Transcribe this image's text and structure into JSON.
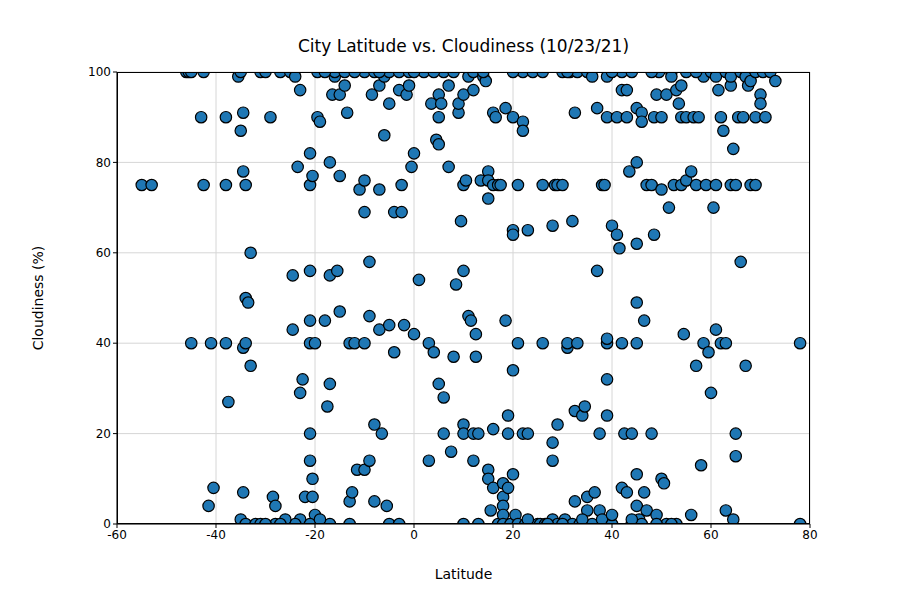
{
  "chart_data": {
    "type": "scatter",
    "title": "City Latitude vs. Cloudiness (10/23/21)",
    "x_label": "Latitude",
    "y_label": "Cloudiness (%)",
    "color": "#1f77b4",
    "marker": "o",
    "grid": true,
    "xlim": [
      -60,
      80
    ],
    "xticks": [
      -60,
      -40,
      -20,
      0,
      20,
      40,
      60,
      80
    ],
    "ylim": [
      0,
      100
    ],
    "yticks": [
      0,
      20,
      40,
      60,
      80,
      100
    ],
    "x": [
      -55,
      -53,
      -46,
      -45.5,
      -45,
      -45,
      -43,
      -42.5,
      -42.5,
      -41.5,
      -41,
      -40.5,
      -38,
      -38,
      -38,
      -37.5,
      -35.5,
      -35,
      -35,
      -34.5,
      -34.5,
      -34.5,
      -34,
      -34,
      -34,
      -33.5,
      -33,
      -33,
      -34.5,
      -35,
      -34,
      -32,
      -31,
      -31,
      -30,
      -29,
      -28.5,
      -28,
      -28,
      -27,
      -26,
      -25,
      -24.5,
      -24.5,
      -24,
      -23.5,
      -23,
      -23,
      -22.5,
      -22,
      -23,
      -24,
      -21,
      -21,
      -21,
      -21,
      -21,
      -21,
      -21,
      -20.5,
      -20.5,
      -20.5,
      -20,
      -20,
      -21,
      -19.5,
      -19.5,
      -19,
      -18,
      -17.5,
      -17,
      -17,
      -17,
      -17,
      -16.5,
      -16,
      -16,
      -15.5,
      -15,
      -15,
      -15,
      -14,
      -14,
      -13.5,
      -13,
      -13,
      -13,
      -12.5,
      -12,
      -11.5,
      -11,
      -10,
      -10,
      -10,
      -10,
      -10,
      -9,
      -9,
      -9,
      -8.5,
      -8,
      -8,
      -8,
      -7,
      -7,
      -7,
      -6.5,
      -6,
      -6,
      -5.5,
      -5,
      -5,
      -5,
      -5,
      -4,
      -4,
      -3,
      -3,
      -2.5,
      -2.5,
      -2,
      -1.5,
      -1,
      -1,
      -0.5,
      0,
      0,
      1,
      2,
      3,
      3,
      3.5,
      4,
      4.5,
      5,
      5,
      5,
      5,
      5.5,
      6,
      6,
      6,
      7,
      7,
      7.5,
      8,
      8,
      8.5,
      9,
      9,
      9.5,
      10,
      10,
      10,
      10,
      10,
      10.5,
      11,
      11,
      11.5,
      12,
      12,
      12,
      12,
      12.5,
      12.5,
      13,
      13.5,
      14,
      14.5,
      15,
      15,
      15,
      15,
      15,
      15.5,
      16,
      16,
      16,
      16,
      16.5,
      17,
      17,
      17.5,
      18,
      18,
      18,
      18,
      18,
      18.5,
      18.5,
      19,
      19,
      19,
      19.5,
      20,
      20,
      20,
      20,
      20,
      20.5,
      21,
      21,
      21,
      22,
      22,
      22,
      22,
      22.5,
      23,
      23,
      24,
      25,
      25.5,
      26,
      26,
      26.5,
      27,
      28,
      28,
      28,
      28,
      28.5,
      29,
      29,
      29,
      30,
      30,
      30.5,
      31,
      31,
      31.5,
      32,
      32,
      32.5,
      32.5,
      32.5,
      33,
      33,
      33.5,
      34,
      34.5,
      35,
      35,
      35,
      36,
      36,
      36.5,
      37,
      37,
      37.5,
      37.5,
      38,
      38,
      38.5,
      39,
      39,
      39,
      39,
      39,
      39,
      40,
      40,
      41,
      41,
      41.5,
      42,
      42,
      42,
      42,
      42.5,
      43,
      43,
      43,
      43.5,
      44,
      44,
      45,
      45,
      45,
      45,
      45,
      45,
      45,
      45.5,
      46,
      46,
      46,
      46.5,
      46.5,
      47,
      47,
      48,
      48,
      48.5,
      48.5,
      49,
      49,
      49.5,
      50,
      50,
      50,
      50.5,
      51,
      51,
      51.5,
      52,
      52,
      52.5,
      53,
      53,
      53.5,
      54,
      54,
      54,
      54.5,
      55,
      55,
      55,
      56,
      56,
      56.5,
      57,
      57,
      57.5,
      58,
      58,
      58.5,
      58.5,
      59,
      59.5,
      60,
      60,
      60.5,
      61,
      61,
      61,
      61.5,
      62,
      62,
      62.5,
      63,
      63,
      63,
      64,
      64,
      64,
      64.5,
      64.5,
      65,
      65,
      65,
      65.5,
      66,
      66,
      66.5,
      67,
      67,
      67.5,
      68,
      68,
      69,
      69,
      69,
      70,
      70,
      70.5,
      71,
      72,
      73,
      78,
      78,
      10,
      13,
      23,
      27,
      30,
      34,
      40,
      44,
      49,
      52,
      -19,
      -30,
      -26,
      -7,
      0,
      4,
      14,
      20,
      26,
      31,
      40,
      44,
      48,
      57,
      -12,
      -18,
      -27,
      -3
    ],
    "values": [
      75,
      75,
      100,
      100,
      100,
      40,
      90,
      100,
      75,
      4,
      40,
      8,
      90,
      75,
      40,
      27,
      99,
      87,
      100,
      78,
      91,
      39,
      75,
      50,
      40,
      49,
      35,
      60,
      7,
      1,
      0,
      0,
      100,
      0,
      100,
      90,
      6,
      4,
      0,
      100,
      0,
      100,
      55,
      43,
      99,
      79,
      96,
      29,
      32,
      6,
      1,
      0,
      82,
      75,
      56,
      45,
      40,
      20,
      14,
      10,
      6,
      77,
      40,
      2,
      0,
      100,
      90,
      89,
      45,
      26,
      80,
      31,
      55,
      0,
      95,
      99,
      100,
      56,
      47,
      77,
      95,
      100,
      97,
      91,
      0,
      40,
      5,
      7,
      40,
      12,
      74,
      100,
      76,
      69,
      40,
      12,
      14,
      58,
      46,
      95,
      100,
      22,
      5,
      97,
      74,
      43,
      20,
      99,
      86,
      4,
      93,
      100,
      44,
      0,
      69,
      38,
      100,
      96,
      69,
      75,
      44,
      95,
      97,
      100,
      79,
      82,
      42,
      54,
      100,
      40,
      14,
      93,
      38,
      85,
      84,
      31,
      95,
      90,
      93,
      20,
      28,
      100,
      97,
      79,
      16,
      37,
      100,
      53,
      91,
      93,
      67,
      95,
      75,
      56,
      22,
      20,
      76,
      99,
      46,
      45,
      100,
      96,
      20,
      14,
      42,
      37,
      20,
      76,
      99,
      98,
      78,
      76,
      12,
      10,
      72,
      3,
      91,
      75,
      21,
      8,
      90,
      75,
      0,
      75,
      9,
      6,
      4,
      2,
      0,
      92,
      45,
      20,
      24,
      8,
      0,
      90,
      65,
      64,
      34,
      11,
      2,
      75,
      40,
      0,
      89,
      87,
      100,
      20,
      0,
      65,
      20,
      100,
      0,
      0,
      75,
      40,
      0,
      0,
      66,
      18,
      14,
      1,
      75,
      22,
      75,
      0,
      100,
      75,
      1,
      39,
      40,
      100,
      67,
      0,
      25,
      5,
      91,
      40,
      100,
      0,
      24,
      26,
      6,
      3,
      100,
      0,
      99,
      7,
      56,
      92,
      3,
      20,
      75,
      1,
      75,
      99,
      40,
      41,
      24,
      32,
      90,
      66,
      0,
      90,
      64,
      61,
      100,
      96,
      8,
      40,
      20,
      90,
      7,
      96,
      78,
      20,
      0,
      92,
      80,
      62,
      49,
      40,
      11,
      4,
      1,
      91,
      89,
      0,
      7,
      45,
      3,
      75,
      75,
      20,
      64,
      90,
      95,
      2,
      100,
      90,
      74,
      10,
      9,
      0,
      95,
      70,
      100,
      99,
      75,
      0,
      96,
      93,
      75,
      90,
      97,
      42,
      76,
      90,
      100,
      78,
      2,
      90,
      75,
      35,
      90,
      100,
      13,
      99,
      40,
      75,
      38,
      29,
      100,
      70,
      75,
      99,
      43,
      96,
      90,
      40,
      87,
      100,
      40,
      3,
      75,
      97,
      99,
      1,
      83,
      75,
      20,
      15,
      90,
      58,
      100,
      90,
      35,
      99,
      97,
      75,
      98,
      90,
      100,
      75,
      95,
      93,
      100,
      90,
      100,
      98,
      0,
      40,
      0,
      0,
      1,
      0,
      0,
      1,
      2,
      1,
      0,
      0,
      1,
      0,
      1,
      100,
      100,
      100,
      100,
      100,
      100,
      100,
      100,
      100,
      100,
      100,
      100,
      100,
      0,
      0
    ]
  }
}
